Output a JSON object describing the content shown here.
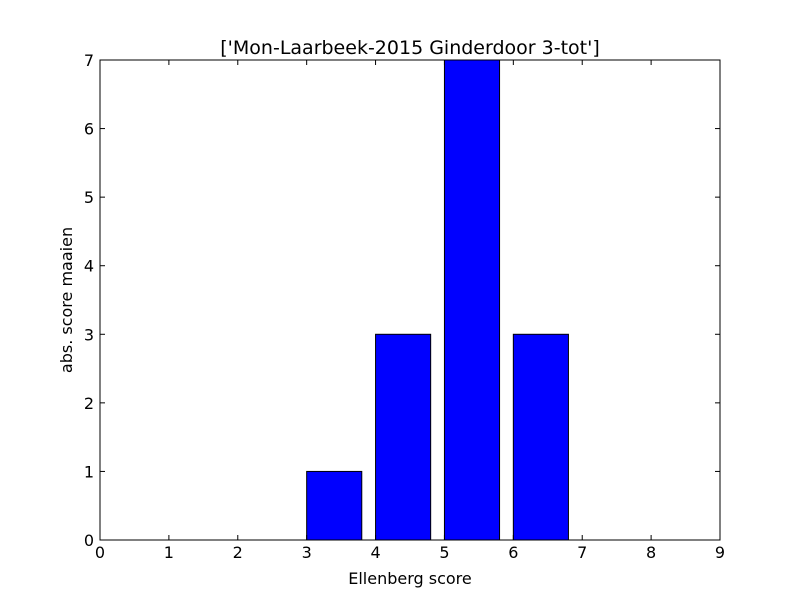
{
  "chart_data": {
    "type": "bar",
    "title": "['Mon-Laarbeek-2015 Ginderdoor 3-tot']",
    "xlabel": "Ellenberg score",
    "ylabel": "abs. score maaien",
    "x": [
      1,
      2,
      3,
      4,
      5,
      6,
      7,
      8
    ],
    "values": [
      0,
      0,
      1,
      3,
      7,
      3,
      0,
      0
    ],
    "bar_width": 0.8,
    "xlim": [
      0,
      9
    ],
    "ylim": [
      0,
      7
    ],
    "xticks": [
      "0",
      "1",
      "2",
      "3",
      "4",
      "5",
      "6",
      "7",
      "8",
      "9"
    ],
    "yticks": [
      "0",
      "1",
      "2",
      "3",
      "4",
      "5",
      "6",
      "7"
    ],
    "bar_color": "#0000ff",
    "edge_color": "#000000",
    "grid": false
  }
}
